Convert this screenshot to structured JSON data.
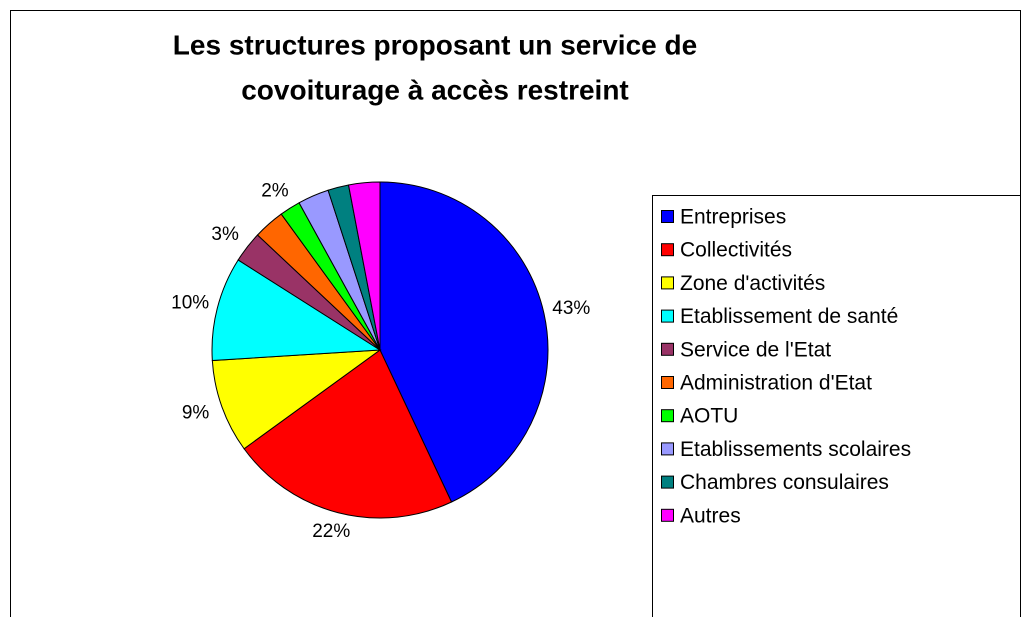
{
  "chart_data": {
    "type": "pie",
    "title": [
      "Les structures proposant un service de",
      "covoiturage à accès restreint"
    ],
    "categories": [
      "Entreprises",
      "Collectivités",
      "Zone d'activités",
      "Etablissement de santé",
      "Service de l'Etat",
      "Administration d'Etat",
      "AOTU",
      "Etablissements scolaires",
      "Chambres consulaires",
      "Autres"
    ],
    "values": [
      43,
      22,
      9,
      10,
      3,
      3,
      2,
      3,
      2,
      3
    ],
    "value_labels": [
      "43%",
      "22%",
      "9%",
      "10%",
      "3%",
      null,
      "2%",
      null,
      null,
      null
    ],
    "colors": [
      "#0000ff",
      "#ff0000",
      "#ffff00",
      "#00ffff",
      "#993366",
      "#ff6600",
      "#00ff00",
      "#9999ff",
      "#008080",
      "#ff00ff"
    ],
    "legend": "right"
  }
}
